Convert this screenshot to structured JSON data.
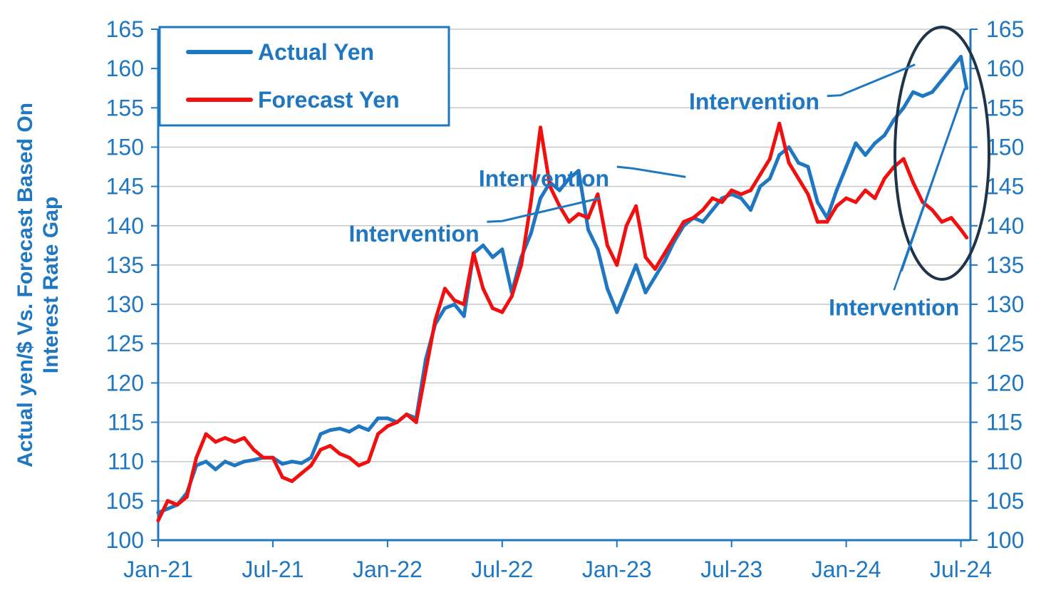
{
  "colors": {
    "actual": "#1f77c2",
    "forecast": "#f01010",
    "axis": "#1f77c2",
    "grid": "#c8c8c8",
    "circle": "#1f3349"
  },
  "chart_data": {
    "type": "line",
    "title": "",
    "ylabel_lines": [
      "Actual yen/$ Vs. Forecast Based On",
      "Interest Rate Gap"
    ],
    "ylim": [
      100,
      165
    ],
    "yticks": [
      100,
      105,
      110,
      115,
      120,
      125,
      130,
      135,
      140,
      145,
      150,
      155,
      160,
      165
    ],
    "yticks_right": [
      100,
      105,
      110,
      115,
      120,
      125,
      130,
      135,
      140,
      145,
      150,
      155,
      160,
      165
    ],
    "x_range_months": [
      0,
      42.5
    ],
    "xticks": [
      {
        "label": "Jan-21",
        "m": 0
      },
      {
        "label": "Jul-21",
        "m": 6
      },
      {
        "label": "Jan-22",
        "m": 12
      },
      {
        "label": "Jul-22",
        "m": 18
      },
      {
        "label": "Jan-23",
        "m": 24
      },
      {
        "label": "Jul-23",
        "m": 30
      },
      {
        "label": "Jan-24",
        "m": 36
      },
      {
        "label": "Jul-24",
        "m": 42
      }
    ],
    "grid": true,
    "legend_position": "top-left",
    "legend": [
      {
        "name": "Actual Yen",
        "color_key": "actual"
      },
      {
        "name": "Forecast Yen",
        "color_key": "forecast"
      }
    ],
    "series": [
      {
        "name": "Actual Yen",
        "color_key": "actual",
        "x": [
          0,
          0.5,
          1,
          1.5,
          2,
          2.5,
          3,
          3.5,
          4,
          4.5,
          5,
          5.5,
          6,
          6.5,
          7,
          7.5,
          8,
          8.5,
          9,
          9.5,
          10,
          10.5,
          11,
          11.5,
          12,
          12.5,
          13,
          13.5,
          14,
          14.5,
          15,
          15.5,
          16,
          16.5,
          17,
          17.5,
          18,
          18.5,
          19,
          19.5,
          20,
          20.5,
          21,
          21.5,
          22,
          22.5,
          23,
          23.5,
          24,
          24.5,
          25,
          25.5,
          26,
          26.5,
          27,
          27.5,
          28,
          28.5,
          29,
          29.5,
          30,
          30.5,
          31,
          31.5,
          32,
          32.5,
          33,
          33.5,
          34,
          34.5,
          35,
          35.5,
          36,
          36.5,
          37,
          37.5,
          38,
          38.5,
          39,
          39.5,
          40,
          40.5,
          41,
          41.5,
          42,
          42.3
        ],
        "values": [
          103.5,
          104.0,
          104.5,
          106.0,
          109.5,
          110.0,
          109.0,
          110.0,
          109.5,
          110.0,
          110.2,
          110.5,
          110.5,
          109.7,
          110.0,
          109.8,
          110.5,
          113.5,
          114.0,
          114.2,
          113.8,
          114.5,
          114.0,
          115.5,
          115.5,
          115.0,
          116.0,
          115.5,
          123.0,
          127.5,
          129.5,
          130.0,
          128.5,
          136.5,
          137.5,
          136.0,
          137.0,
          131.5,
          136.0,
          139.0,
          143.5,
          145.5,
          144.5,
          146.0,
          147.0,
          139.5,
          137.0,
          132.0,
          129.0,
          132.0,
          135.0,
          131.5,
          133.5,
          135.5,
          138.0,
          140.0,
          141.0,
          140.5,
          142.0,
          143.5,
          144.0,
          143.5,
          142.0,
          145.0,
          146.0,
          149.0,
          150.0,
          148.0,
          147.5,
          143.0,
          141.0,
          144.5,
          147.5,
          150.5,
          149.0,
          150.5,
          151.5,
          153.5,
          155.0,
          157.0,
          156.5,
          157.0,
          158.5,
          160.0,
          161.5,
          157.5
        ]
      },
      {
        "name": "Forecast Yen",
        "color_key": "forecast",
        "x": [
          0,
          0.5,
          1,
          1.5,
          2,
          2.5,
          3,
          3.5,
          4,
          4.5,
          5,
          5.5,
          6,
          6.5,
          7,
          7.5,
          8,
          8.5,
          9,
          9.5,
          10,
          10.5,
          11,
          11.5,
          12,
          12.5,
          13,
          13.5,
          14,
          14.5,
          15,
          15.5,
          16,
          16.5,
          17,
          17.5,
          18,
          18.5,
          19,
          19.5,
          20,
          20.5,
          21,
          21.5,
          22,
          22.5,
          23,
          23.5,
          24,
          24.5,
          25,
          25.5,
          26,
          26.5,
          27,
          27.5,
          28,
          28.5,
          29,
          29.5,
          30,
          30.5,
          31,
          31.5,
          32,
          32.5,
          33,
          33.5,
          34,
          34.5,
          35,
          35.5,
          36,
          36.5,
          37,
          37.5,
          38,
          38.5,
          39,
          39.5,
          40,
          40.5,
          41,
          41.5,
          42,
          42.3
        ],
        "values": [
          102.5,
          105.0,
          104.5,
          105.5,
          110.5,
          113.5,
          112.5,
          113.0,
          112.5,
          113.0,
          111.5,
          110.5,
          110.5,
          108.0,
          107.5,
          108.5,
          109.5,
          111.5,
          112.0,
          111.0,
          110.5,
          109.5,
          110.0,
          113.5,
          114.5,
          115.0,
          116.0,
          115.0,
          121.5,
          128.0,
          132.0,
          130.5,
          130.0,
          136.5,
          132.0,
          129.5,
          129.0,
          131.0,
          135.0,
          143.0,
          152.5,
          145.0,
          142.5,
          140.5,
          141.5,
          141.0,
          144.0,
          137.5,
          135.0,
          140.0,
          142.5,
          136.0,
          134.5,
          136.5,
          138.5,
          140.5,
          141.0,
          142.0,
          143.5,
          143.0,
          144.5,
          144.0,
          144.5,
          146.5,
          148.5,
          153.0,
          148.0,
          146.0,
          144.0,
          140.5,
          140.5,
          142.5,
          143.5,
          143.0,
          144.5,
          143.5,
          146.0,
          147.5,
          148.5,
          145.5,
          143.0,
          142.0,
          140.5,
          141.0,
          139.5,
          138.5
        ]
      }
    ],
    "annotations": [
      {
        "text": "Intervention",
        "pos": [
          23.6,
          145.0
        ],
        "lead": [
          [
            24.0,
            147.5
          ],
          [
            24.8,
            147.3
          ],
          [
            27.6,
            146.2
          ]
        ]
      },
      {
        "text": "Intervention",
        "pos": [
          16.8,
          138.0
        ],
        "lead": [
          [
            17.2,
            140.5
          ],
          [
            18.0,
            140.6
          ],
          [
            23.1,
            143.5
          ]
        ]
      },
      {
        "text": "Intervention",
        "pos": [
          34.6,
          154.8
        ],
        "lead": [
          [
            35.0,
            156.5
          ],
          [
            35.7,
            156.6
          ],
          [
            39.6,
            160.5
          ]
        ]
      },
      {
        "text": "Intervention",
        "pos": [
          38.5,
          128.6
        ],
        "lead": [
          [
            38.5,
            131.8
          ],
          [
            42.3,
            158.0
          ],
          [
            38.7,
            133.2
          ],
          [
            42.2,
            157.5
          ],
          [
            38.9,
            134.2
          ],
          [
            42.1,
            156.8
          ]
        ]
      }
    ]
  }
}
